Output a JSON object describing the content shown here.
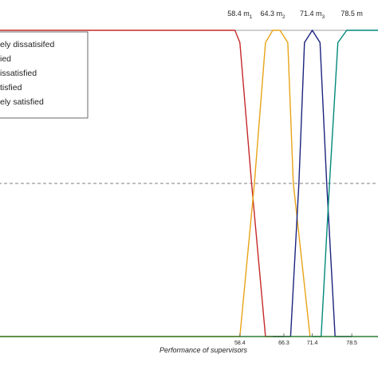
{
  "chart_data": {
    "type": "line",
    "xlabel": "Performance of supervisors",
    "x_tick_labels": [
      "58.4",
      "66.3",
      "71.4",
      "78.5"
    ],
    "x_ticks": [
      58.4,
      66.3,
      71.4,
      78.5
    ],
    "top_labels": [
      {
        "x": 58.4,
        "value": "58.4",
        "m": "m",
        "sub": "1"
      },
      {
        "x": 64.3,
        "value": "64.3",
        "m": "m",
        "sub": "2"
      },
      {
        "x": 71.4,
        "value": "71.4",
        "m": "m",
        "sub": "3"
      },
      {
        "x": 78.5,
        "value": "78.5",
        "m": "m",
        "sub": ""
      }
    ],
    "xlim": [
      15,
      83.5
    ],
    "ylim": [
      0,
      1
    ],
    "grid": false,
    "legend_position": "top-left",
    "reference_line": {
      "y": 0.5,
      "style": "dashed"
    },
    "series": [
      {
        "name": "ely dissatisifed",
        "color": "#c62828",
        "x": [
          15,
          57.5,
          58.4,
          60.5,
          63.0,
          66.3
        ],
        "y": [
          1.0,
          1.0,
          0.96,
          0.5,
          0.0,
          0.0
        ]
      },
      {
        "name": "ied",
        "color": "#e8a317",
        "x": [
          15,
          58.4,
          61.0,
          63.0,
          64.3,
          65.6,
          67.0,
          68.0,
          71.0
        ],
        "y": [
          0.0,
          0.0,
          0.5,
          0.96,
          1.0,
          1.0,
          0.96,
          0.5,
          0.0
        ]
      },
      {
        "name": "issatisfied",
        "color": "#1a237e",
        "x": [
          64.3,
          67.5,
          69.0,
          70.0,
          71.4,
          72.8,
          74.0,
          75.5,
          78.5
        ],
        "y": [
          0.0,
          0.0,
          0.5,
          0.96,
          1.0,
          0.96,
          0.5,
          0.0,
          0.0
        ]
      },
      {
        "name": "tisfied",
        "color": "#00897b",
        "x": [
          71.4,
          73.0,
          74.5,
          76.0,
          77.6,
          78.5,
          83.5
        ],
        "y": [
          0.0,
          0.0,
          0.5,
          0.96,
          1.0,
          1.0,
          1.0
        ]
      },
      {
        "name": "ely satisfied",
        "color": "#2e7d32",
        "x": [
          15,
          78.5,
          83.5
        ],
        "y": [
          0.0,
          0.0,
          0.0
        ]
      }
    ]
  }
}
